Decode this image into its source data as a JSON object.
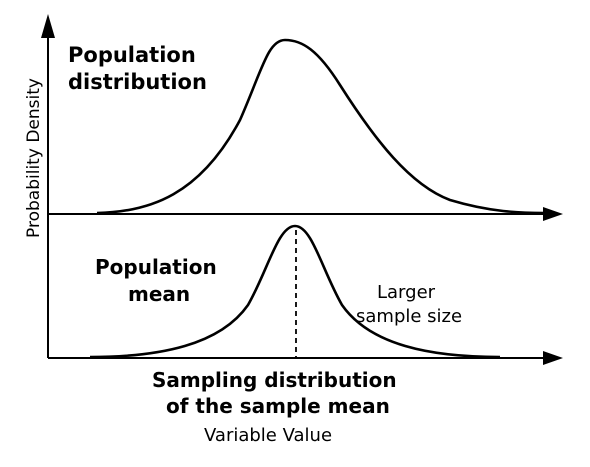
{
  "diagram": {
    "top_panel_label": [
      "Population",
      "distribution"
    ],
    "mean_label": [
      "Population",
      "mean"
    ],
    "sample_size_label": [
      "Larger",
      "sample size"
    ],
    "bottom_panel_label": [
      "Sampling distribution",
      "of the sample mean"
    ],
    "x_axis_label": "Variable Value",
    "y_axis_label": "Probability Density",
    "line_color": "#000000"
  }
}
